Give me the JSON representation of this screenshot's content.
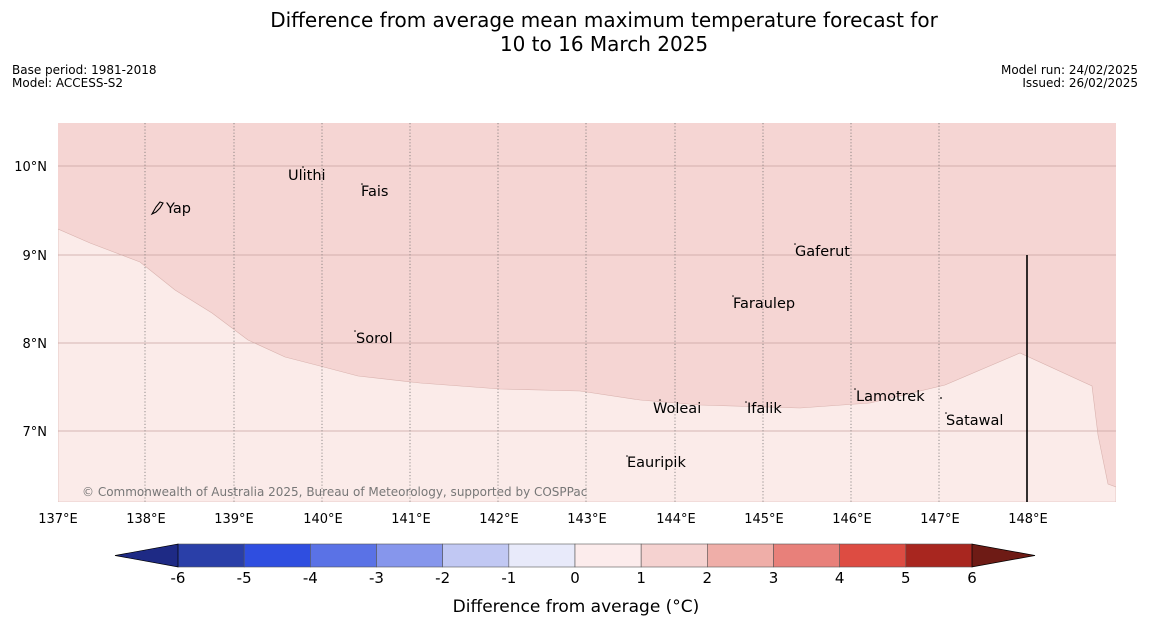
{
  "title": {
    "line1": "Difference from average mean maximum temperature forecast for",
    "line2": "10 to 16 March 2025"
  },
  "meta_left": {
    "base_period": "Base period: 1981-2018",
    "model": "Model: ACCESS-S2"
  },
  "meta_right": {
    "model_run": "Model run: 24/02/2025",
    "issued": "Issued: 26/02/2025"
  },
  "map": {
    "lat_labels": [
      "10°N",
      "9°N",
      "8°N",
      "7°N"
    ],
    "lon_labels": [
      "137°E",
      "138°E",
      "139°E",
      "140°E",
      "141°E",
      "142°E",
      "143°E",
      "144°E",
      "145°E",
      "146°E",
      "147°E",
      "148°E"
    ],
    "places": [
      "Ulithi",
      "Fais",
      "Yap",
      "Gaferut",
      "Faraulep",
      "Sorol",
      "Lamotrek",
      "Woleai",
      "Ifalik",
      "Satawal",
      "Eauripik"
    ],
    "copyright": "© Commonwealth of Australia 2025, Bureau of Meteorology, supported by COSPPac",
    "fill_colors": {
      "upper_region_1_to_2": "#f5d5d3",
      "lower_region_0_to_1": "#fbebe9"
    }
  },
  "colorbar": {
    "title": "Difference from average (°C)",
    "tick_labels": [
      "-6",
      "-5",
      "-4",
      "-3",
      "-2",
      "-1",
      "0",
      "1",
      "2",
      "3",
      "4",
      "5",
      "6"
    ],
    "colors": [
      "#2a3fa8",
      "#2f4ee0",
      "#5a72e6",
      "#8696ec",
      "#c1c8f3",
      "#e8eafa",
      "#fcecec",
      "#f5d2d0",
      "#efaea8",
      "#e8807a",
      "#dd4c42",
      "#a8261f"
    ],
    "extend_low_color": "#1e2a85",
    "extend_high_color": "#6e1b15"
  }
}
